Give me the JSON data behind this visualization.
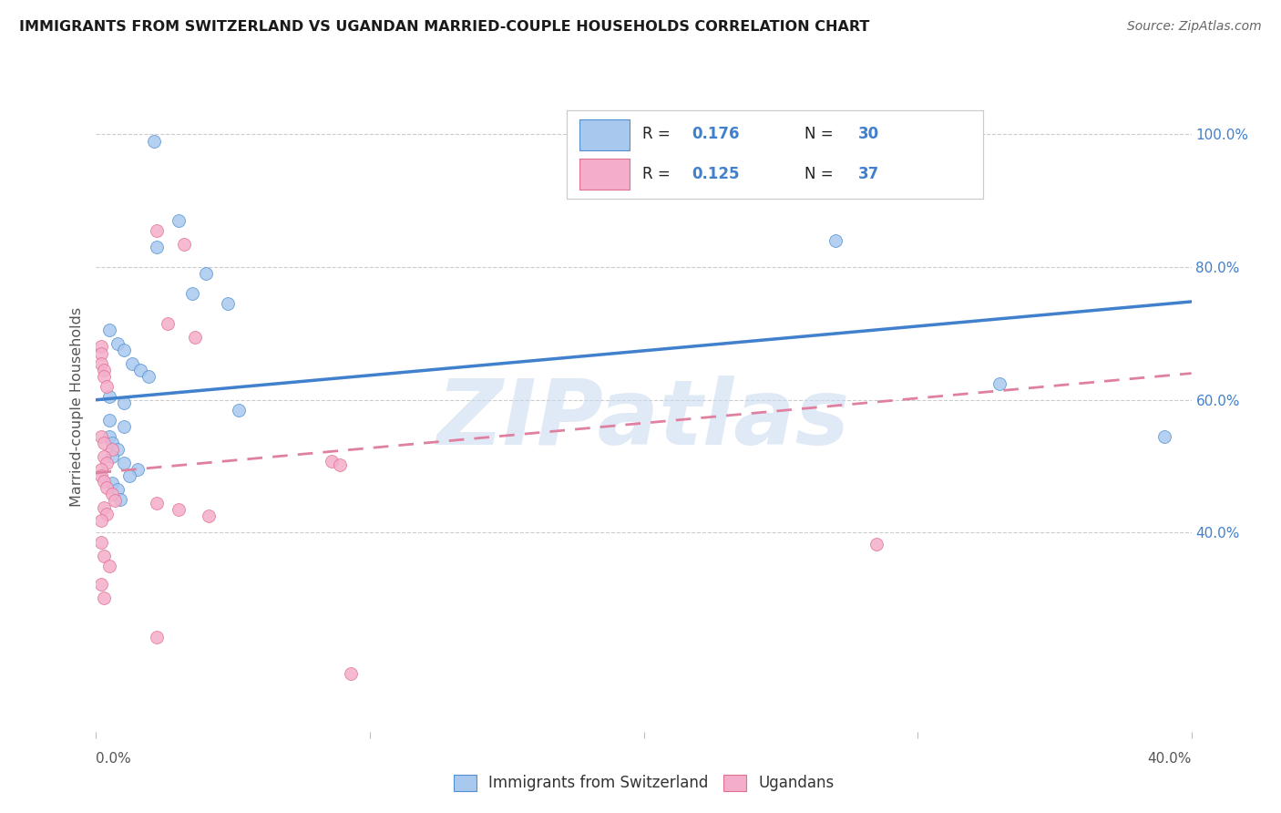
{
  "title": "IMMIGRANTS FROM SWITZERLAND VS UGANDAN MARRIED-COUPLE HOUSEHOLDS CORRELATION CHART",
  "source": "Source: ZipAtlas.com",
  "ylabel": "Married-couple Households",
  "right_ytick_labels": [
    "40.0%",
    "60.0%",
    "80.0%",
    "100.0%"
  ],
  "right_ytick_vals": [
    0.4,
    0.6,
    0.8,
    1.0
  ],
  "xtick_labels": [
    "0.0%",
    "",
    "",
    "",
    "40.0%"
  ],
  "xtick_vals": [
    0.0,
    0.1,
    0.2,
    0.3,
    0.4
  ],
  "legend_label_blue": "Immigrants from Switzerland",
  "legend_label_pink": "Ugandans",
  "blue_fill": "#A8C8EE",
  "pink_fill": "#F4AECB",
  "blue_edge": "#5090D0",
  "pink_edge": "#E07090",
  "blue_line_color": "#4080CC",
  "pink_line_color": "#E080A0",
  "blue_scatter": [
    [
      0.021,
      0.99
    ],
    [
      0.03,
      0.87
    ],
    [
      0.022,
      0.83
    ],
    [
      0.04,
      0.79
    ],
    [
      0.035,
      0.76
    ],
    [
      0.048,
      0.745
    ],
    [
      0.005,
      0.705
    ],
    [
      0.008,
      0.685
    ],
    [
      0.01,
      0.675
    ],
    [
      0.013,
      0.655
    ],
    [
      0.016,
      0.645
    ],
    [
      0.019,
      0.635
    ],
    [
      0.005,
      0.605
    ],
    [
      0.01,
      0.595
    ],
    [
      0.052,
      0.585
    ],
    [
      0.005,
      0.57
    ],
    [
      0.01,
      0.56
    ],
    [
      0.005,
      0.545
    ],
    [
      0.006,
      0.535
    ],
    [
      0.008,
      0.525
    ],
    [
      0.006,
      0.515
    ],
    [
      0.01,
      0.505
    ],
    [
      0.015,
      0.495
    ],
    [
      0.012,
      0.485
    ],
    [
      0.006,
      0.475
    ],
    [
      0.008,
      0.465
    ],
    [
      0.009,
      0.45
    ],
    [
      0.27,
      0.84
    ],
    [
      0.33,
      0.625
    ],
    [
      0.39,
      0.545
    ]
  ],
  "pink_scatter": [
    [
      0.002,
      0.68
    ],
    [
      0.002,
      0.67
    ],
    [
      0.002,
      0.655
    ],
    [
      0.003,
      0.645
    ],
    [
      0.003,
      0.635
    ],
    [
      0.004,
      0.62
    ],
    [
      0.002,
      0.545
    ],
    [
      0.003,
      0.535
    ],
    [
      0.006,
      0.525
    ],
    [
      0.003,
      0.515
    ],
    [
      0.004,
      0.505
    ],
    [
      0.002,
      0.495
    ],
    [
      0.002,
      0.485
    ],
    [
      0.003,
      0.478
    ],
    [
      0.004,
      0.468
    ],
    [
      0.006,
      0.458
    ],
    [
      0.007,
      0.448
    ],
    [
      0.003,
      0.438
    ],
    [
      0.004,
      0.428
    ],
    [
      0.002,
      0.418
    ],
    [
      0.022,
      0.445
    ],
    [
      0.03,
      0.435
    ],
    [
      0.041,
      0.425
    ],
    [
      0.022,
      0.855
    ],
    [
      0.032,
      0.835
    ],
    [
      0.026,
      0.715
    ],
    [
      0.036,
      0.695
    ],
    [
      0.086,
      0.508
    ],
    [
      0.089,
      0.502
    ],
    [
      0.285,
      0.383
    ],
    [
      0.002,
      0.385
    ],
    [
      0.003,
      0.365
    ],
    [
      0.005,
      0.35
    ],
    [
      0.002,
      0.322
    ],
    [
      0.003,
      0.302
    ],
    [
      0.022,
      0.242
    ],
    [
      0.093,
      0.187
    ]
  ],
  "blue_line_x": [
    0.0,
    0.4
  ],
  "blue_line_y": [
    0.6,
    0.748
  ],
  "pink_line_x": [
    0.0,
    0.4
  ],
  "pink_line_y": [
    0.49,
    0.64
  ],
  "xlim": [
    0.0,
    0.4
  ],
  "ylim": [
    0.1,
    1.08
  ],
  "watermark_text": "ZIPatlas",
  "background_color": "#ffffff",
  "grid_color": "#cccccc",
  "legend_r_blue": "0.176",
  "legend_n_blue": "30",
  "legend_r_pink": "0.125",
  "legend_n_pink": "37"
}
